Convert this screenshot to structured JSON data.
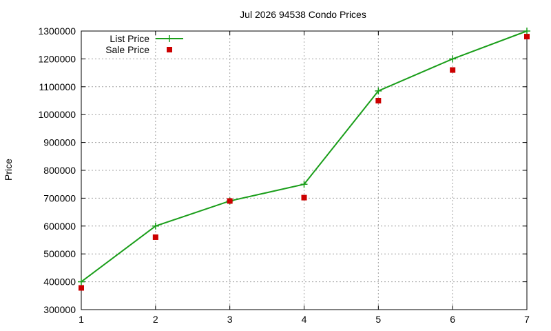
{
  "chart_data": {
    "type": "line",
    "title": "Jul 2026 94538 Condo Prices",
    "xlabel": "",
    "ylabel": "Price",
    "xlim": [
      1,
      7
    ],
    "ylim": [
      300000,
      1300000
    ],
    "x_ticks": [
      1,
      2,
      3,
      4,
      5,
      6,
      7
    ],
    "y_ticks": [
      300000,
      400000,
      500000,
      600000,
      700000,
      800000,
      900000,
      1000000,
      1100000,
      1200000,
      1300000
    ],
    "grid": true,
    "legend_position": "top-left",
    "x": [
      1,
      2,
      3,
      4,
      5,
      6,
      7
    ],
    "series": [
      {
        "name": "List Price",
        "style": "line-with-plus-markers",
        "color": "#1a9e1a",
        "values": [
          400000,
          600000,
          690000,
          750000,
          1085000,
          1200000,
          1300000
        ]
      },
      {
        "name": "Sale Price",
        "style": "square-points",
        "color": "#cc0000",
        "values": [
          378000,
          560000,
          690000,
          702000,
          1050000,
          1160000,
          1280000
        ]
      }
    ]
  }
}
